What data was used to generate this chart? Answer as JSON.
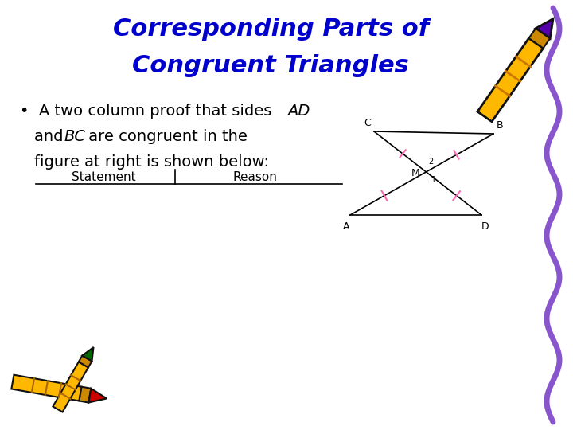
{
  "title_line1": "Corresponding Parts of",
  "title_line2": "Congruent Triangles",
  "title_color": "#0000CC",
  "title_fontsize": 22,
  "title_style": "italic",
  "title_weight": "bold",
  "bg_color": "#FFFFFF",
  "bullet_fontsize": 14,
  "bullet_color": "#000000",
  "table_col1": "Statement",
  "table_col2": "Reason",
  "table_fontsize": 11,
  "table_color": "#000000",
  "squiggle_color": "#8855CC",
  "pink_mark_color": "#FF69B4"
}
